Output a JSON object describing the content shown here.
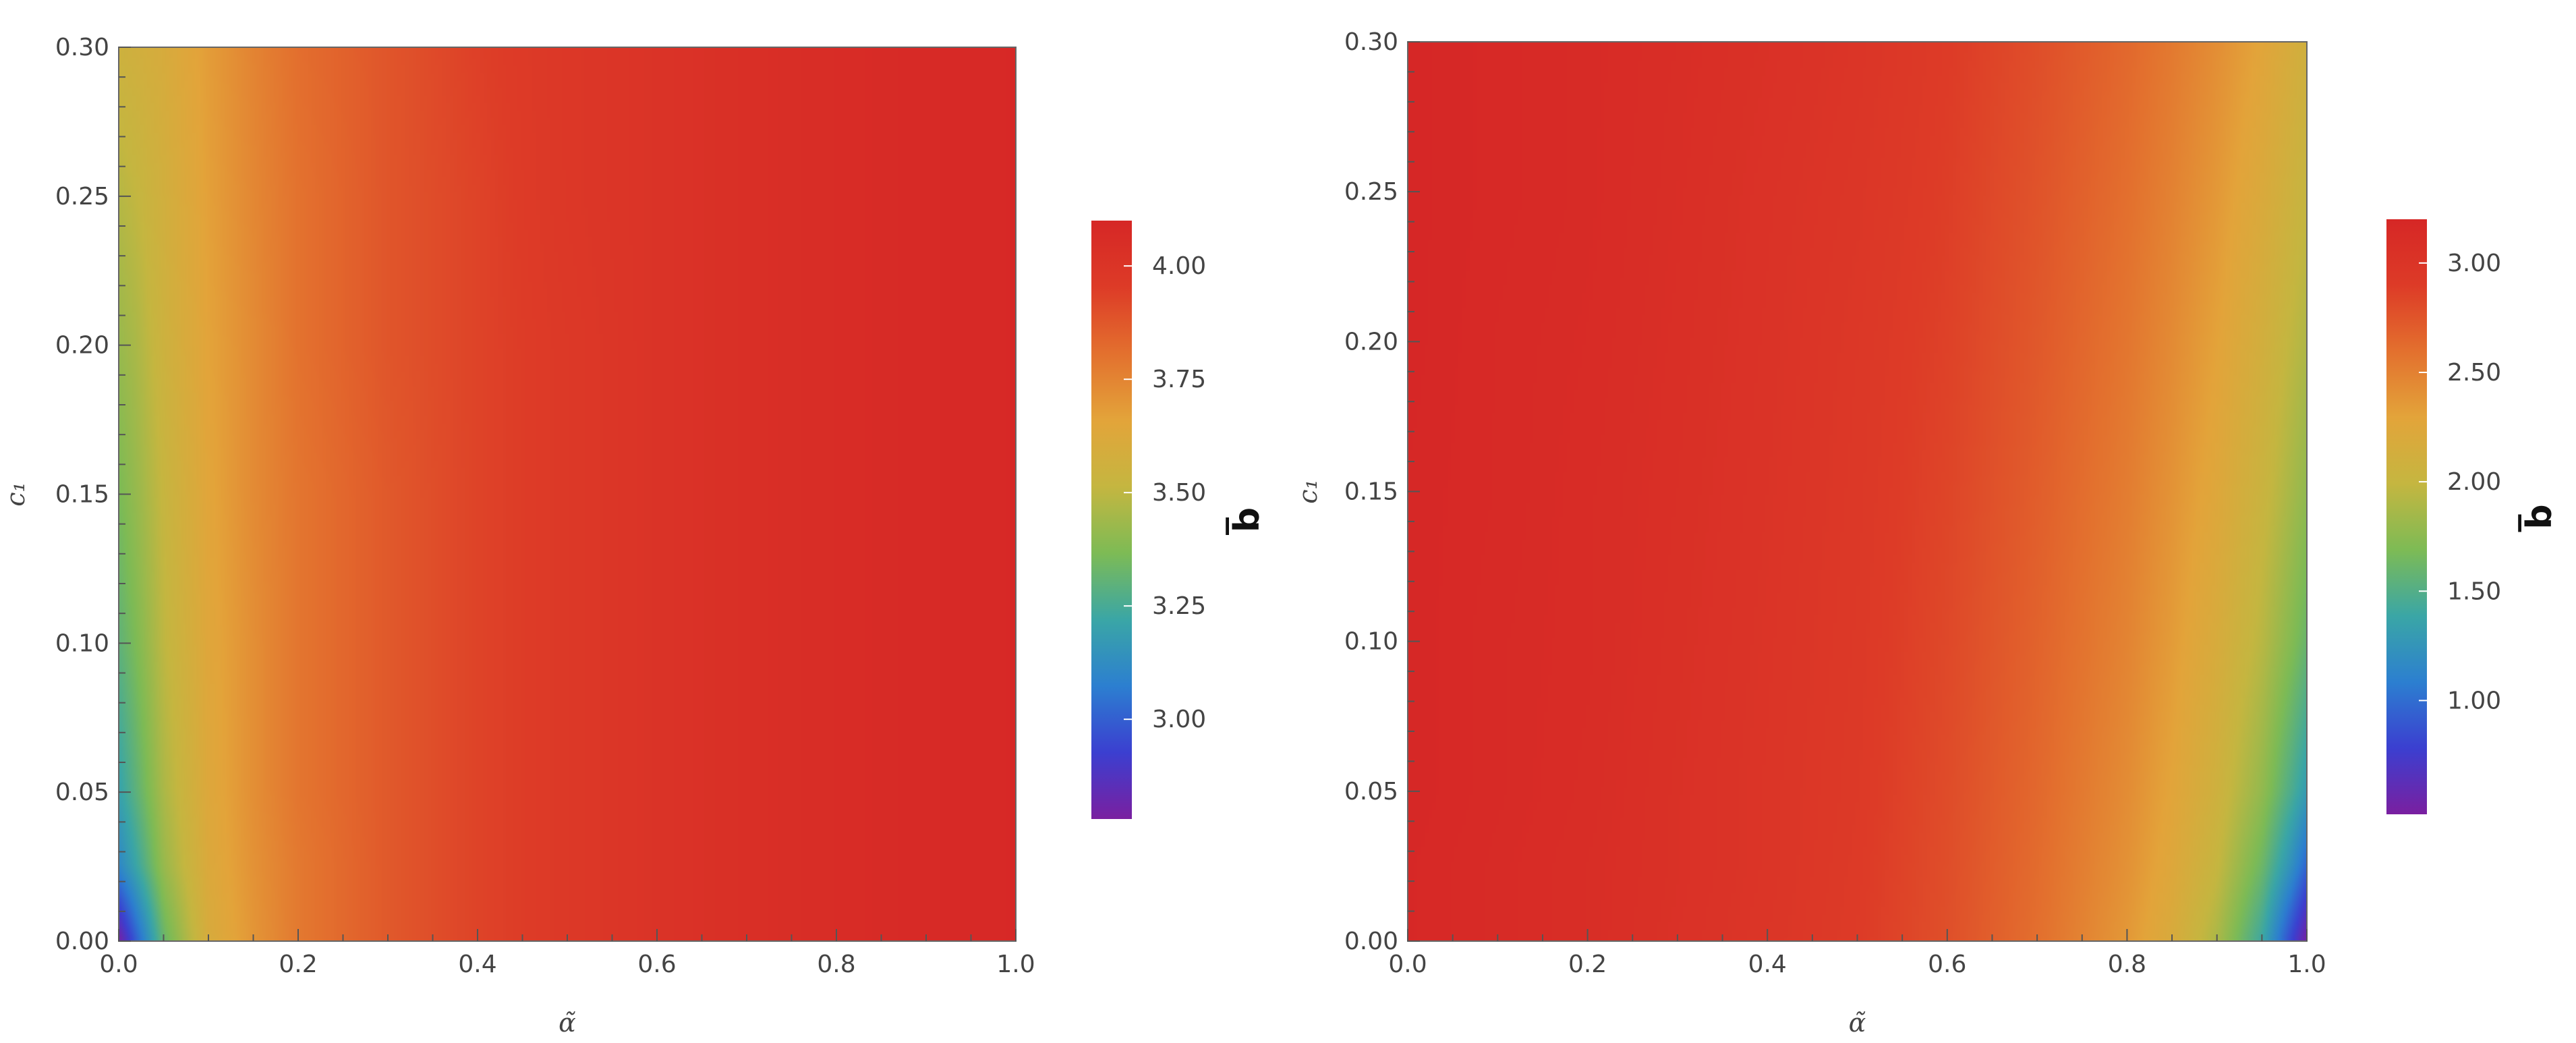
{
  "chart_data": [
    {
      "type": "heatmap",
      "title": "",
      "xlabel": "α̃",
      "ylabel": "c₁",
      "xlim": [
        0,
        1
      ],
      "ylim": [
        0,
        0.3
      ],
      "x_ticks": [
        "0.0",
        "0.2",
        "0.4",
        "0.6",
        "0.8",
        "1.0"
      ],
      "y_ticks": [
        "0.00",
        "0.05",
        "0.10",
        "0.15",
        "0.20",
        "0.25",
        "0.30"
      ],
      "colorbar": {
        "label": "b̅",
        "range": [
          2.78,
          4.1
        ],
        "ticks": [
          "3.00",
          "3.25",
          "3.50",
          "3.75",
          "4.00"
        ],
        "tick_values": [
          3.0,
          3.25,
          3.5,
          3.75,
          4.0
        ]
      },
      "x": [
        0.0,
        0.02,
        0.05,
        0.1,
        0.15,
        0.2,
        0.3,
        0.4,
        0.5,
        0.6,
        0.7,
        0.8,
        0.9,
        1.0
      ],
      "y": [
        0.0,
        0.025,
        0.05,
        0.1,
        0.15,
        0.2,
        0.25,
        0.3
      ],
      "z": [
        [
          2.78,
          3.0,
          3.32,
          3.6,
          3.7,
          3.78,
          3.87,
          3.93,
          3.97,
          4.01,
          4.04,
          4.06,
          4.08,
          4.09
        ],
        [
          3.1,
          3.22,
          3.42,
          3.62,
          3.71,
          3.78,
          3.87,
          3.93,
          3.97,
          4.01,
          4.04,
          4.06,
          4.08,
          4.09
        ],
        [
          3.2,
          3.3,
          3.46,
          3.63,
          3.72,
          3.79,
          3.87,
          3.93,
          3.97,
          4.01,
          4.04,
          4.06,
          4.08,
          4.09
        ],
        [
          3.3,
          3.37,
          3.5,
          3.64,
          3.72,
          3.79,
          3.87,
          3.93,
          3.97,
          4.01,
          4.04,
          4.06,
          4.08,
          4.09
        ],
        [
          3.36,
          3.42,
          3.52,
          3.65,
          3.73,
          3.79,
          3.87,
          3.93,
          3.97,
          4.01,
          4.04,
          4.06,
          4.08,
          4.09
        ],
        [
          3.42,
          3.46,
          3.55,
          3.66,
          3.73,
          3.8,
          3.88,
          3.93,
          3.97,
          4.01,
          4.04,
          4.06,
          4.08,
          4.09
        ],
        [
          3.48,
          3.51,
          3.57,
          3.67,
          3.74,
          3.8,
          3.88,
          3.93,
          3.98,
          4.01,
          4.04,
          4.06,
          4.08,
          4.09
        ],
        [
          3.55,
          3.57,
          3.6,
          3.68,
          3.75,
          3.81,
          3.88,
          3.94,
          3.98,
          4.01,
          4.04,
          4.06,
          4.08,
          4.09
        ]
      ]
    },
    {
      "type": "heatmap",
      "title": "",
      "xlabel": "α̃",
      "ylabel": "c₁",
      "xlim": [
        0,
        1
      ],
      "ylim": [
        0,
        0.3
      ],
      "x_ticks": [
        "0.0",
        "0.2",
        "0.4",
        "0.6",
        "0.8",
        "1.0"
      ],
      "y_ticks": [
        "0.00",
        "0.05",
        "0.10",
        "0.15",
        "0.20",
        "0.25",
        "0.30"
      ],
      "colorbar": {
        "label": "b̅",
        "range": [
          0.48,
          3.2
        ],
        "ticks": [
          "1.00",
          "1.50",
          "2.00",
          "2.50",
          "3.00"
        ],
        "tick_values": [
          1.0,
          1.5,
          2.0,
          2.5,
          3.0
        ]
      },
      "x": [
        0.0,
        0.1,
        0.2,
        0.3,
        0.4,
        0.5,
        0.6,
        0.7,
        0.8,
        0.85,
        0.9,
        0.95,
        0.98,
        1.0
      ],
      "y": [
        0.0,
        0.025,
        0.05,
        0.1,
        0.15,
        0.2,
        0.25,
        0.3
      ],
      "z": [
        [
          3.18,
          3.14,
          3.1,
          3.04,
          2.98,
          2.9,
          2.78,
          2.6,
          2.36,
          2.18,
          1.88,
          1.4,
          0.85,
          0.48
        ],
        [
          3.18,
          3.14,
          3.1,
          3.05,
          2.99,
          2.91,
          2.79,
          2.62,
          2.4,
          2.24,
          2.0,
          1.62,
          1.25,
          0.95
        ],
        [
          3.19,
          3.15,
          3.11,
          3.05,
          2.99,
          2.92,
          2.8,
          2.64,
          2.43,
          2.28,
          2.08,
          1.78,
          1.5,
          1.3
        ],
        [
          3.19,
          3.15,
          3.12,
          3.06,
          3.0,
          2.93,
          2.82,
          2.67,
          2.48,
          2.34,
          2.17,
          1.94,
          1.74,
          1.6
        ],
        [
          3.19,
          3.16,
          3.12,
          3.07,
          3.01,
          2.94,
          2.84,
          2.7,
          2.52,
          2.39,
          2.24,
          2.04,
          1.88,
          1.77
        ],
        [
          3.2,
          3.16,
          3.13,
          3.08,
          3.02,
          2.95,
          2.86,
          2.73,
          2.56,
          2.44,
          2.3,
          2.12,
          1.98,
          1.9
        ],
        [
          3.2,
          3.17,
          3.14,
          3.09,
          3.03,
          2.97,
          2.88,
          2.76,
          2.6,
          2.49,
          2.36,
          2.2,
          2.08,
          2.0
        ],
        [
          3.2,
          3.17,
          3.14,
          3.1,
          3.05,
          2.99,
          2.9,
          2.79,
          2.64,
          2.54,
          2.42,
          2.28,
          2.17,
          2.1
        ]
      ]
    }
  ],
  "colorscale": [
    "#7a1fa0",
    "#3b3fd0",
    "#2c7fd0",
    "#3aa6a6",
    "#7dbb55",
    "#c5b640",
    "#e3a43a",
    "#e3702e",
    "#dd3b27",
    "#d62726"
  ]
}
